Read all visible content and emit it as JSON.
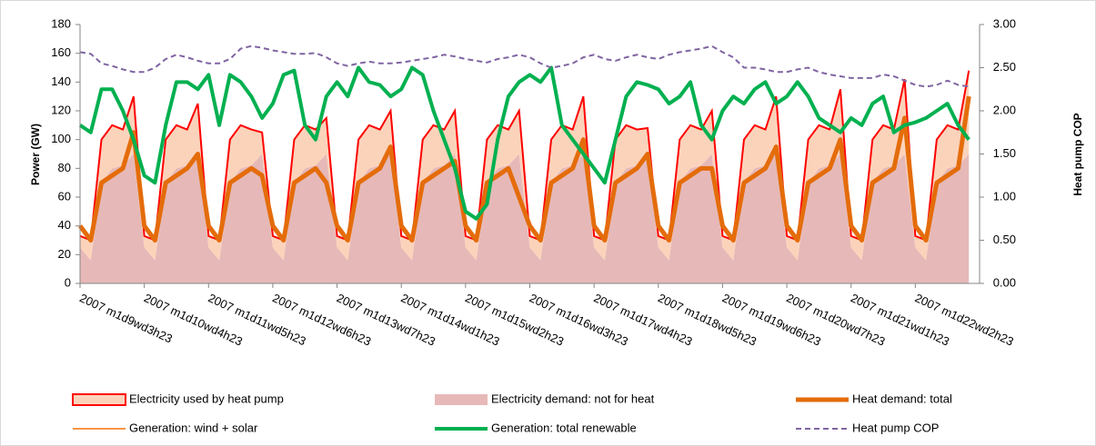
{
  "chart_data": {
    "type": "combo",
    "y_label": "Power (GW)",
    "y2_label": "Heat pump COP",
    "categories": [
      "2007 m1d9wd3h23",
      null,
      null,
      null,
      null,
      null,
      "2007 m1d10wd4h23",
      null,
      null,
      null,
      null,
      null,
      "2007 m1d11wd5h23",
      null,
      null,
      null,
      null,
      null,
      "2007 m1d12wd6h23",
      null,
      null,
      null,
      null,
      null,
      "2007 m1d13wd7h23",
      null,
      null,
      null,
      null,
      null,
      "2007 m1d14wd1h23",
      null,
      null,
      null,
      null,
      null,
      "2007 m1d15wd2h23",
      null,
      null,
      null,
      null,
      null,
      "2007 m1d16wd3h23",
      null,
      null,
      null,
      null,
      null,
      "2007 m1d17wd4h23",
      null,
      null,
      null,
      null,
      null,
      "2007 m1d18wd5h23",
      null,
      null,
      null,
      null,
      null,
      "2007 m1d19wd6h23",
      null,
      null,
      null,
      null,
      null,
      "2007 m1d20wd7h23",
      null,
      null,
      null,
      null,
      null,
      "2007 m1d21wd1h23",
      null,
      null,
      null,
      null,
      null,
      "2007 m1d22wd2h23",
      null,
      null,
      null,
      null,
      null
    ],
    "ylim": [
      0,
      180
    ],
    "yticks": [
      0,
      20,
      40,
      60,
      80,
      100,
      120,
      140,
      160,
      180
    ],
    "y2lim": [
      0,
      3
    ],
    "y2ticks": [
      {
        "value": 0,
        "label": "0.00"
      },
      {
        "value": 0.5,
        "label": "0.50"
      },
      {
        "value": 1,
        "label": "1.00"
      },
      {
        "value": 1.5,
        "label": "1.50"
      },
      {
        "value": 2,
        "label": "2.00"
      },
      {
        "value": 2.5,
        "label": "2.50"
      },
      {
        "value": 3,
        "label": "3.00"
      }
    ],
    "series": [
      {
        "name": "Electricity used by heat pump",
        "kind": "area",
        "color": "#fbd3bb",
        "line_color": "#ff0000",
        "values": [
          8,
          14,
          30,
          30,
          25,
          40,
          8,
          14,
          30,
          30,
          25,
          35,
          8,
          14,
          30,
          30,
          25,
          15,
          8,
          14,
          30,
          30,
          25,
          25,
          8,
          14,
          30,
          30,
          25,
          30,
          8,
          14,
          30,
          30,
          25,
          30,
          8,
          14,
          30,
          30,
          25,
          30,
          8,
          14,
          30,
          30,
          25,
          40,
          8,
          14,
          30,
          30,
          25,
          18,
          8,
          14,
          30,
          30,
          25,
          30,
          8,
          14,
          30,
          30,
          25,
          40,
          8,
          14,
          30,
          30,
          25,
          45,
          8,
          14,
          30,
          30,
          25,
          52,
          8,
          14,
          30,
          30,
          25,
          58
        ]
      },
      {
        "name": "Electricity demand: not for heat",
        "kind": "area",
        "color": "#e6b9b8",
        "values": [
          25,
          16,
          70,
          80,
          82,
          90,
          25,
          16,
          70,
          80,
          82,
          90,
          25,
          16,
          70,
          80,
          82,
          90,
          25,
          16,
          70,
          80,
          82,
          90,
          25,
          16,
          70,
          80,
          82,
          90,
          25,
          16,
          70,
          80,
          82,
          90,
          25,
          16,
          70,
          80,
          82,
          90,
          25,
          16,
          70,
          80,
          82,
          90,
          25,
          16,
          70,
          80,
          82,
          90,
          25,
          16,
          70,
          80,
          82,
          90,
          25,
          16,
          70,
          80,
          82,
          90,
          25,
          16,
          70,
          80,
          82,
          90,
          25,
          16,
          70,
          80,
          82,
          90,
          25,
          16,
          70,
          80,
          82,
          90
        ]
      },
      {
        "name": "Heat demand: total",
        "kind": "line",
        "color": "#e46c0a",
        "width": 5,
        "values": [
          40,
          30,
          70,
          75,
          80,
          105,
          40,
          30,
          70,
          75,
          80,
          90,
          40,
          30,
          70,
          75,
          80,
          75,
          40,
          30,
          70,
          75,
          80,
          70,
          40,
          30,
          70,
          75,
          80,
          95,
          40,
          30,
          70,
          75,
          80,
          85,
          40,
          30,
          70,
          75,
          80,
          60,
          40,
          30,
          70,
          75,
          80,
          100,
          40,
          30,
          70,
          75,
          80,
          90,
          40,
          30,
          70,
          75,
          80,
          80,
          40,
          30,
          70,
          75,
          80,
          95,
          40,
          30,
          70,
          75,
          80,
          100,
          40,
          30,
          70,
          75,
          80,
          115,
          40,
          30,
          70,
          75,
          80,
          130
        ]
      },
      {
        "name": "Generation: wind + solar",
        "kind": "line",
        "color": "#f79646",
        "width": 2,
        "values": [
          110,
          105,
          135,
          135,
          120,
          100,
          75,
          70,
          110,
          140,
          140,
          135,
          145,
          110,
          145,
          140,
          130,
          115,
          125,
          145,
          148,
          110,
          100,
          130,
          140,
          130,
          150,
          140,
          138,
          130,
          135,
          150,
          145,
          120,
          100,
          80,
          50,
          45,
          55,
          100,
          130,
          140,
          145,
          140,
          150,
          110,
          100,
          90,
          80,
          70,
          100,
          130,
          140,
          138,
          135,
          125,
          130,
          140,
          110,
          100,
          120,
          130,
          125,
          135,
          140,
          125,
          130,
          140,
          130,
          115,
          110,
          105,
          115,
          110,
          125,
          130,
          105,
          110,
          112,
          115,
          120,
          125,
          110,
          100
        ]
      },
      {
        "name": "Generation: total renewable",
        "kind": "line",
        "color": "#00b050",
        "width": 4,
        "values": [
          110,
          105,
          135,
          135,
          120,
          100,
          75,
          70,
          110,
          140,
          140,
          135,
          145,
          110,
          145,
          140,
          130,
          115,
          125,
          145,
          148,
          110,
          100,
          130,
          140,
          130,
          150,
          140,
          138,
          130,
          135,
          150,
          145,
          120,
          100,
          80,
          50,
          45,
          55,
          100,
          130,
          140,
          145,
          140,
          150,
          110,
          100,
          90,
          80,
          70,
          100,
          130,
          140,
          138,
          135,
          125,
          130,
          140,
          110,
          100,
          120,
          130,
          125,
          135,
          140,
          125,
          130,
          140,
          130,
          115,
          110,
          105,
          115,
          110,
          125,
          130,
          105,
          110,
          112,
          115,
          120,
          125,
          110,
          100
        ]
      },
      {
        "name": "Heat pump COP",
        "kind": "line",
        "color": "#8064a2",
        "width": 2,
        "dash": true,
        "axis": "y2",
        "values": [
          2.68,
          2.66,
          2.55,
          2.52,
          2.48,
          2.45,
          2.45,
          2.5,
          2.6,
          2.65,
          2.62,
          2.58,
          2.55,
          2.55,
          2.6,
          2.72,
          2.75,
          2.73,
          2.7,
          2.68,
          2.66,
          2.66,
          2.67,
          2.62,
          2.55,
          2.52,
          2.55,
          2.57,
          2.55,
          2.55,
          2.56,
          2.58,
          2.6,
          2.62,
          2.65,
          2.63,
          2.6,
          2.58,
          2.56,
          2.6,
          2.62,
          2.65,
          2.62,
          2.55,
          2.5,
          2.52,
          2.55,
          2.62,
          2.65,
          2.6,
          2.58,
          2.62,
          2.65,
          2.62,
          2.6,
          2.65,
          2.68,
          2.7,
          2.72,
          2.75,
          2.68,
          2.62,
          2.5,
          2.5,
          2.48,
          2.45,
          2.45,
          2.48,
          2.5,
          2.45,
          2.42,
          2.4,
          2.38,
          2.38,
          2.38,
          2.42,
          2.4,
          2.35,
          2.3,
          2.28,
          2.3,
          2.35,
          2.3,
          2.28
        ]
      }
    ]
  }
}
